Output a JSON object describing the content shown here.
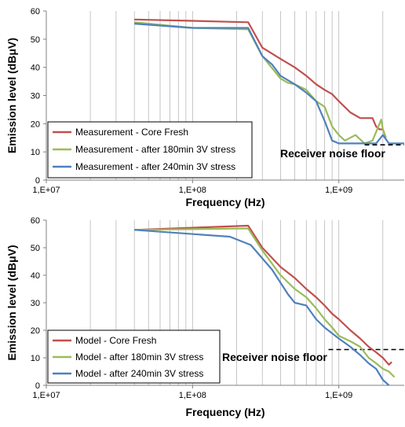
{
  "chart_data": [
    {
      "type": "line",
      "x_scale": "log",
      "xlim": [
        10000000,
        2800000000
      ],
      "ylim": [
        0,
        60
      ],
      "yticks": [
        0,
        10,
        20,
        30,
        40,
        50,
        60
      ],
      "xticks": [
        {
          "value": 10000000,
          "label": "1,E+07"
        },
        {
          "value": 100000000,
          "label": "1,E+08"
        },
        {
          "value": 1000000000,
          "label": "1,E+09"
        }
      ],
      "xlabel": "Frequency (Hz)",
      "ylabel": "Emission level (dBμV)",
      "grid": "vertical log minor",
      "legend_position": "bottom-left",
      "series": [
        {
          "name": "Measurement - Core Fresh",
          "color": "#c0504d",
          "x": [
            40000000,
            100000000,
            240000000,
            300000000,
            400000000,
            500000000,
            600000000,
            700000000,
            800000000,
            900000000,
            1000000000,
            1200000000,
            1400000000,
            1700000000,
            1800000000,
            1900000000,
            2000000000,
            2100000000
          ],
          "y": [
            57,
            56.5,
            56,
            47,
            43,
            40,
            37,
            34,
            32,
            30.5,
            28,
            24,
            22,
            22,
            19,
            18,
            18,
            15
          ]
        },
        {
          "name": "Measurement - after 180min 3V stress",
          "color": "#9bbb59",
          "x": [
            40000000,
            100000000,
            240000000,
            300000000,
            400000000,
            450000000,
            500000000,
            600000000,
            700000000,
            800000000,
            900000000,
            1000000000,
            1100000000,
            1300000000,
            1500000000,
            1700000000,
            1900000000,
            1950000000,
            2000000000,
            2100000000
          ],
          "y": [
            56,
            54,
            53.5,
            44,
            36,
            34.5,
            34,
            32,
            28,
            26,
            19,
            16,
            14,
            16,
            13,
            14,
            20,
            21.5,
            18,
            15
          ]
        },
        {
          "name": "Measurement - after 240min 3V stress",
          "color": "#4f81bd",
          "x": [
            40000000,
            100000000,
            240000000,
            300000000,
            350000000,
            400000000,
            500000000,
            600000000,
            700000000,
            800000000,
            900000000,
            1000000000,
            1500000000,
            1800000000,
            2000000000,
            2200000000,
            2800000000
          ],
          "y": [
            55.5,
            54,
            54,
            44,
            41,
            37,
            34,
            31,
            28,
            21,
            14,
            13,
            13,
            13,
            16,
            13,
            13
          ]
        }
      ],
      "annotation": {
        "label": "Receiver noise floor",
        "y": 12.5,
        "x_start": 1500000000,
        "x_end": 2800000000
      }
    },
    {
      "type": "line",
      "x_scale": "log",
      "xlim": [
        10000000,
        2800000000
      ],
      "ylim": [
        0,
        60
      ],
      "yticks": [
        0,
        10,
        20,
        30,
        40,
        50,
        60
      ],
      "xticks": [
        {
          "value": 10000000,
          "label": "1,E+07"
        },
        {
          "value": 100000000,
          "label": "1,E+08"
        },
        {
          "value": 1000000000,
          "label": "1,E+09"
        }
      ],
      "xlabel": "Frequency (Hz)",
      "ylabel": "Emission level (dBμV)",
      "grid": "vertical log minor",
      "legend_position": "bottom-left",
      "series": [
        {
          "name": "Model - Core Fresh",
          "color": "#c0504d",
          "x": [
            40000000,
            240000000,
            300000000,
            400000000,
            500000000,
            600000000,
            700000000,
            800000000,
            900000000,
            1000000000,
            1200000000,
            1400000000,
            1600000000,
            1800000000,
            2000000000,
            2200000000,
            2300000000
          ],
          "y": [
            56.5,
            58,
            50,
            43,
            39,
            35,
            32,
            29,
            26,
            24,
            20,
            17,
            14,
            12,
            10,
            7.5,
            8.5
          ]
        },
        {
          "name": "Model - after 180min 3V stress",
          "color": "#9bbb59",
          "x": [
            40000000,
            240000000,
            300000000,
            400000000,
            500000000,
            600000000,
            700000000,
            800000000,
            900000000,
            1000000000,
            1200000000,
            1400000000,
            1600000000,
            1800000000,
            2000000000,
            2200000000,
            2400000000
          ],
          "y": [
            56.5,
            57,
            49,
            40,
            35,
            32,
            28,
            24,
            21,
            18,
            16,
            14,
            10,
            8,
            6,
            5,
            3
          ]
        },
        {
          "name": "Model - after 240min 3V stress",
          "color": "#4f81bd",
          "x": [
            40000000,
            180000000,
            250000000,
            350000000,
            450000000,
            500000000,
            600000000,
            700000000,
            800000000,
            1000000000,
            1200000000,
            1400000000,
            1600000000,
            1800000000,
            2000000000,
            2200000000
          ],
          "y": [
            56.5,
            54,
            51,
            42,
            33,
            30,
            29,
            24,
            21,
            17,
            14,
            11,
            8,
            6,
            2,
            0
          ]
        }
      ],
      "annotation": {
        "label": "Receiver noise floor",
        "y": 13,
        "x_start": 850000000,
        "x_end": 2800000000
      }
    }
  ]
}
